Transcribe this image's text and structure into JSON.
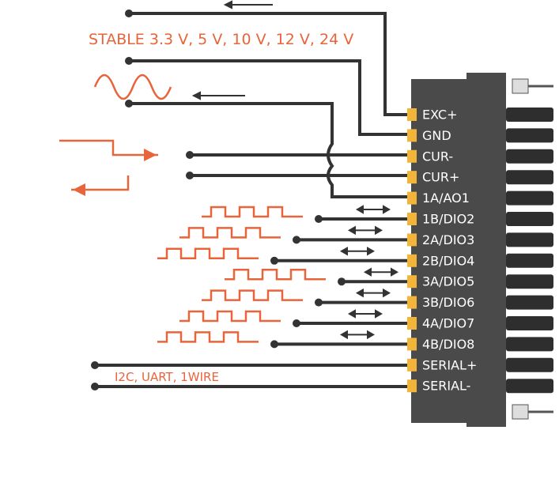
{
  "voltage_note": "STABLE 3.3 V, 5 V, 10 V, 12 V, 24 V",
  "serial_note": "I2C, UART, 1WIRE",
  "pins": [
    "EXC+",
    "GND",
    "CUR-",
    "CUR+",
    "1A/AO1",
    "1B/DIO2",
    "2A/DIO3",
    "2B/DIO4",
    "3A/DIO5",
    "3B/DIO6",
    "4A/DIO7",
    "4B/DIO8",
    "SERIAL+",
    "SERIAL-"
  ]
}
